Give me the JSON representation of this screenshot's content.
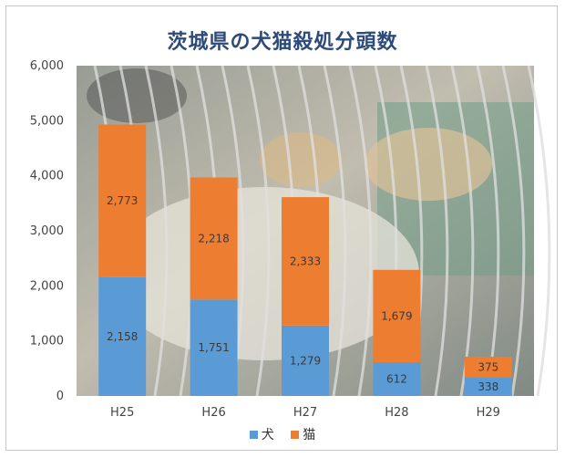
{
  "chart_data": {
    "type": "bar",
    "stacked": true,
    "title": "茨城県の犬猫殺処分頭数",
    "categories": [
      "H25",
      "H26",
      "H27",
      "H28",
      "H29"
    ],
    "series": [
      {
        "name": "犬",
        "color": "#5b9bd5",
        "values": [
          2158,
          1751,
          1279,
          612,
          338
        ],
        "labels": [
          "2,158",
          "1,751",
          "1,279",
          "612",
          "338"
        ]
      },
      {
        "name": "猫",
        "color": "#ed7d31",
        "values": [
          2773,
          2218,
          2333,
          1679,
          375
        ],
        "labels": [
          "2,773",
          "2,218",
          "2,333",
          "1,679",
          "375"
        ]
      }
    ],
    "yticks": [
      {
        "value": 0,
        "label": "0"
      },
      {
        "value": 1000,
        "label": "1,000"
      },
      {
        "value": 2000,
        "label": "2,000"
      },
      {
        "value": 3000,
        "label": "3,000"
      },
      {
        "value": 4000,
        "label": "4,000"
      },
      {
        "value": 5000,
        "label": "5,000"
      },
      {
        "value": 6000,
        "label": "6,000"
      }
    ],
    "ylim": [
      0,
      6000
    ],
    "legend_position": "bottom",
    "grid": false
  }
}
